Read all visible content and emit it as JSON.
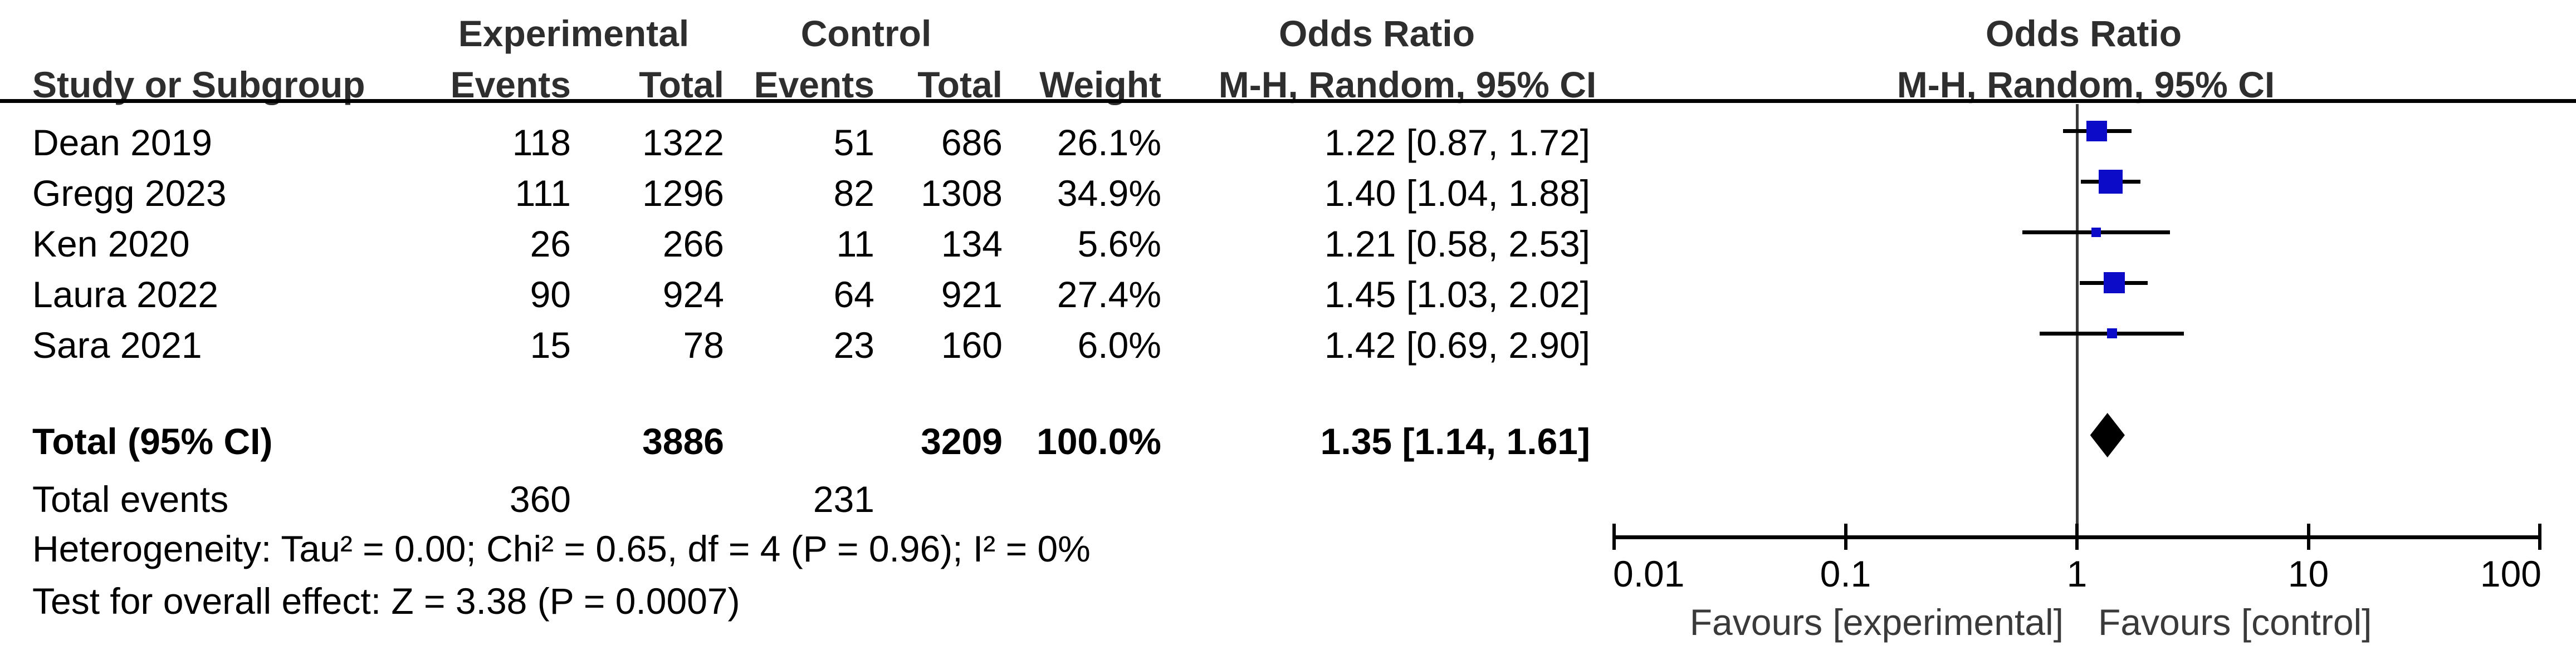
{
  "header": {
    "group_experimental": "Experimental",
    "group_control": "Control",
    "col_study": "Study or Subgroup",
    "col_events_exp": "Events",
    "col_total_exp": "Total",
    "col_events_ctl": "Events",
    "col_total_ctl": "Total",
    "col_weight": "Weight",
    "or_title_left": "Odds Ratio",
    "or_sub_left": "M-H, Random, 95% CI",
    "or_title_right": "Odds Ratio",
    "or_sub_right": "M-H, Random, 95% CI"
  },
  "chart_data": {
    "type": "forest",
    "effect_label": "Odds Ratio",
    "model": "M-H, Random, 95% CI",
    "x_scale": "log10",
    "x_tick_labels": [
      "0.01",
      "0.1",
      "1",
      "10",
      "100"
    ],
    "x_tick_values": [
      0.01,
      0.1,
      1,
      10,
      100
    ],
    "favours_left": "Favours [experimental]",
    "favours_right": "Favours [control]",
    "studies": [
      {
        "name": "Dean 2019",
        "exp_events": "118",
        "exp_total": "1322",
        "ctl_events": "51",
        "ctl_total": "686",
        "weight": "26.1%",
        "weight_pct": 26.1,
        "or": 1.22,
        "ci_low": 0.87,
        "ci_high": 1.72,
        "or_label": "1.22 [0.87, 1.72]"
      },
      {
        "name": "Gregg 2023",
        "exp_events": "111",
        "exp_total": "1296",
        "ctl_events": "82",
        "ctl_total": "1308",
        "weight": "34.9%",
        "weight_pct": 34.9,
        "or": 1.4,
        "ci_low": 1.04,
        "ci_high": 1.88,
        "or_label": "1.40 [1.04, 1.88]"
      },
      {
        "name": "Ken 2020",
        "exp_events": "26",
        "exp_total": "266",
        "ctl_events": "11",
        "ctl_total": "134",
        "weight": "5.6%",
        "weight_pct": 5.6,
        "or": 1.21,
        "ci_low": 0.58,
        "ci_high": 2.53,
        "or_label": "1.21 [0.58, 2.53]"
      },
      {
        "name": "Laura 2022",
        "exp_events": "90",
        "exp_total": "924",
        "ctl_events": "64",
        "ctl_total": "921",
        "weight": "27.4%",
        "weight_pct": 27.4,
        "or": 1.45,
        "ci_low": 1.03,
        "ci_high": 2.02,
        "or_label": "1.45 [1.03, 2.02]"
      },
      {
        "name": "Sara 2021",
        "exp_events": "15",
        "exp_total": "78",
        "ctl_events": "23",
        "ctl_total": "160",
        "weight": "6.0%",
        "weight_pct": 6.0,
        "or": 1.42,
        "ci_low": 0.69,
        "ci_high": 2.9,
        "or_label": "1.42 [0.69, 2.90]"
      }
    ],
    "total": {
      "label": "Total (95% CI)",
      "exp_total": "3886",
      "ctl_total": "3209",
      "weight": "100.0%",
      "or": 1.35,
      "ci_low": 1.14,
      "ci_high": 1.61,
      "or_label": "1.35 [1.14, 1.61]"
    },
    "total_events": {
      "label": "Total events",
      "exp": "360",
      "ctl": "231"
    },
    "heterogeneity": "Heterogeneity: Tau² = 0.00; Chi² = 0.65, df = 4 (P = 0.96); I² = 0%",
    "overall_effect": "Test for overall effect: Z = 3.38 (P = 0.0007)",
    "colors": {
      "marker_blue": "#0c0cc8",
      "diamond": "#000000",
      "reference_gray": "#3a3a3a"
    }
  }
}
